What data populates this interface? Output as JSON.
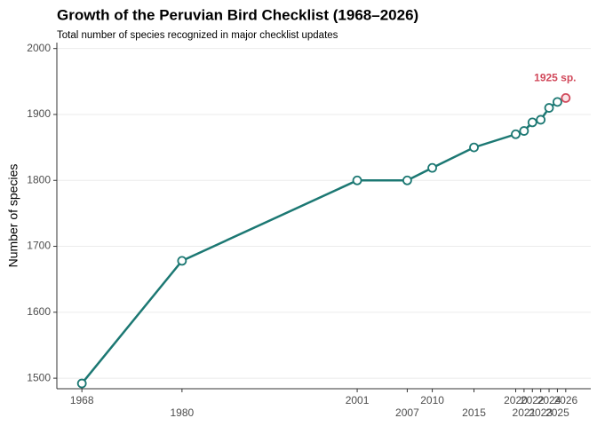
{
  "chart_data": {
    "type": "line",
    "title": "Growth of the Peruvian Bird Checklist (1968–2026)",
    "subtitle": "Total number of species recognized in major checklist updates",
    "y_label": "Number of species",
    "x": [
      1968,
      1980,
      2001,
      2007,
      2010,
      2015,
      2020,
      2021,
      2022,
      2023,
      2024,
      2025,
      2026
    ],
    "values": [
      1492,
      1678,
      1800,
      1800,
      1819,
      1850,
      1870,
      1875,
      1888,
      1892,
      1910,
      1919,
      1925
    ],
    "color": "#1c7873",
    "highlight_color": "#d1495b",
    "annotation": "1925 sp.",
    "xlim": [
      1965,
      2029
    ],
    "xticks": [
      1968,
      1980,
      2001,
      2007,
      2010,
      2015,
      2020,
      2021,
      2022,
      2023,
      2024,
      2025,
      2026
    ],
    "ylim": [
      1484,
      2009
    ],
    "yticks": [
      1500,
      1600,
      1700,
      1800,
      1900,
      2000
    ],
    "grid": true
  }
}
